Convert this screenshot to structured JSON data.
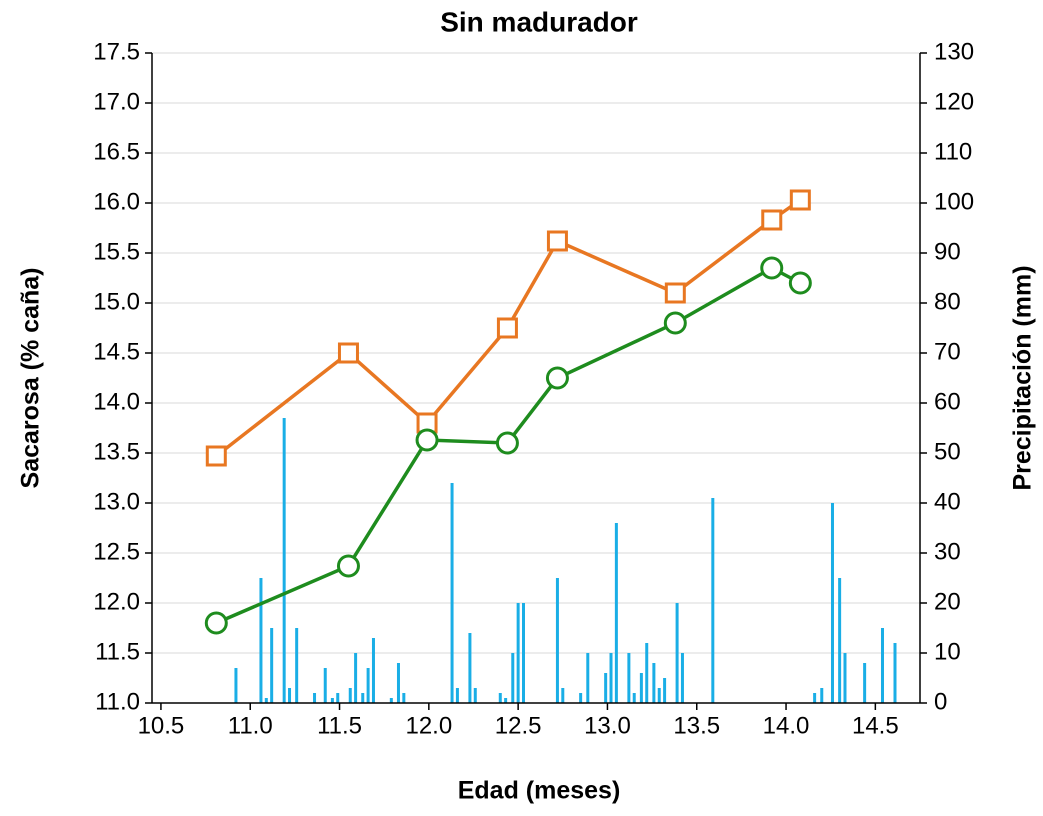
{
  "chart_data": {
    "type": "line",
    "title": "Sin madurador",
    "x_label": "Edad (meses)",
    "y_label": "Sacarosa (% caña)",
    "y2_label": "Precipitación (mm)",
    "xlim": [
      10.45,
      14.75
    ],
    "xticks": [
      {
        "value": 10.5,
        "label": "10.5"
      },
      {
        "value": 11,
        "label": "11.0"
      },
      {
        "value": 11.5,
        "label": "11.5"
      },
      {
        "value": 12,
        "label": "12.0"
      },
      {
        "value": 12.5,
        "label": "12.5"
      },
      {
        "value": 13,
        "label": "13.0"
      },
      {
        "value": 13.5,
        "label": "13.5"
      },
      {
        "value": 14,
        "label": "14.0"
      },
      {
        "value": 14.5,
        "label": "14.5"
      }
    ],
    "ylim": [
      11,
      17.5
    ],
    "yticks": [
      {
        "value": 11,
        "label": "11.0"
      },
      {
        "value": 11.5,
        "label": "11.5"
      },
      {
        "value": 12,
        "label": "12.0"
      },
      {
        "value": 12.5,
        "label": "12.5"
      },
      {
        "value": 13,
        "label": "13.0"
      },
      {
        "value": 13.5,
        "label": "13.5"
      },
      {
        "value": 14,
        "label": "14.0"
      },
      {
        "value": 14.5,
        "label": "14.5"
      },
      {
        "value": 15,
        "label": "15.0"
      },
      {
        "value": 15.5,
        "label": "15.5"
      },
      {
        "value": 16,
        "label": "16.0"
      },
      {
        "value": 16.5,
        "label": "16.5"
      },
      {
        "value": 17,
        "label": "17.0"
      },
      {
        "value": 17.5,
        "label": "17.5"
      }
    ],
    "y2lim": [
      0,
      130
    ],
    "y2ticks": [
      0,
      10,
      20,
      30,
      40,
      50,
      60,
      70,
      80,
      90,
      100,
      110,
      120,
      130
    ],
    "grid": true,
    "x": [
      10.81,
      11.55,
      11.99,
      12.44,
      12.72,
      13.38,
      13.92,
      14.08
    ],
    "series": [
      {
        "type": "line",
        "marker": "square",
        "color": "#e87722",
        "values": [
          13.47,
          14.5,
          13.8,
          14.75,
          15.62,
          15.1,
          15.83,
          16.03
        ]
      },
      {
        "type": "line",
        "marker": "circle",
        "color": "#1e8c1e",
        "values": [
          11.8,
          12.37,
          13.63,
          13.6,
          14.25,
          14.8,
          15.35,
          15.2
        ]
      },
      {
        "type": "bar",
        "axis": "y2",
        "color": "#1aaee6",
        "x": [
          10.92,
          11.06,
          11.09,
          11.12,
          11.19,
          11.22,
          11.26,
          11.36,
          11.42,
          11.46,
          11.49,
          11.56,
          11.59,
          11.63,
          11.66,
          11.69,
          11.79,
          11.83,
          11.86,
          12.13,
          12.16,
          12.23,
          12.26,
          12.4,
          12.43,
          12.47,
          12.5,
          12.53,
          12.72,
          12.75,
          12.85,
          12.89,
          12.99,
          13.02,
          13.05,
          13.12,
          13.15,
          13.19,
          13.22,
          13.26,
          13.29,
          13.32,
          13.39,
          13.42,
          13.59,
          14.16,
          14.2,
          14.26,
          14.3,
          14.33,
          14.44,
          14.54,
          14.61
        ],
        "values": [
          7,
          25,
          1,
          15,
          57,
          3,
          15,
          2,
          7,
          1,
          2,
          3,
          10,
          2,
          7,
          13,
          1,
          8,
          2,
          44,
          3,
          14,
          3,
          2,
          1,
          10,
          20,
          20,
          25,
          3,
          2,
          10,
          6,
          10,
          36,
          10,
          2,
          6,
          12,
          8,
          3,
          5,
          20,
          10,
          41,
          2,
          3,
          40,
          25,
          10,
          8,
          15,
          12
        ]
      }
    ]
  }
}
